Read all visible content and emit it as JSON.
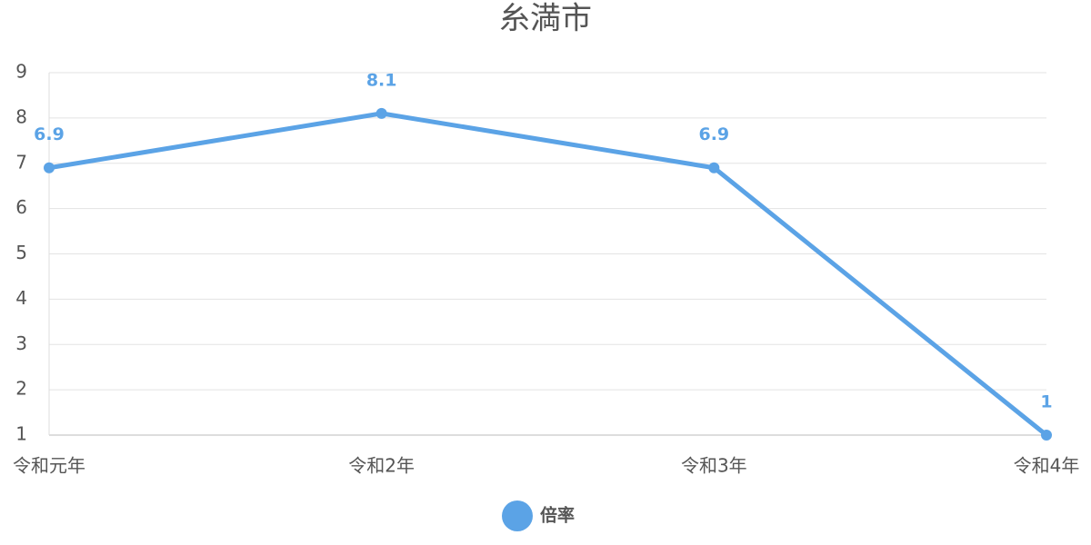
{
  "chart_data": {
    "type": "line",
    "title": "糸満市",
    "categories": [
      "令和元年",
      "令和2年",
      "令和3年",
      "令和4年"
    ],
    "series": [
      {
        "name": "倍率",
        "color": "#5ba3e6",
        "values": [
          6.9,
          8.1,
          6.9,
          1
        ]
      }
    ],
    "ylim": [
      1,
      9
    ],
    "yticks": [
      1,
      2,
      3,
      4,
      5,
      6,
      7,
      8,
      9
    ],
    "grid": true,
    "legend": "bottom"
  }
}
